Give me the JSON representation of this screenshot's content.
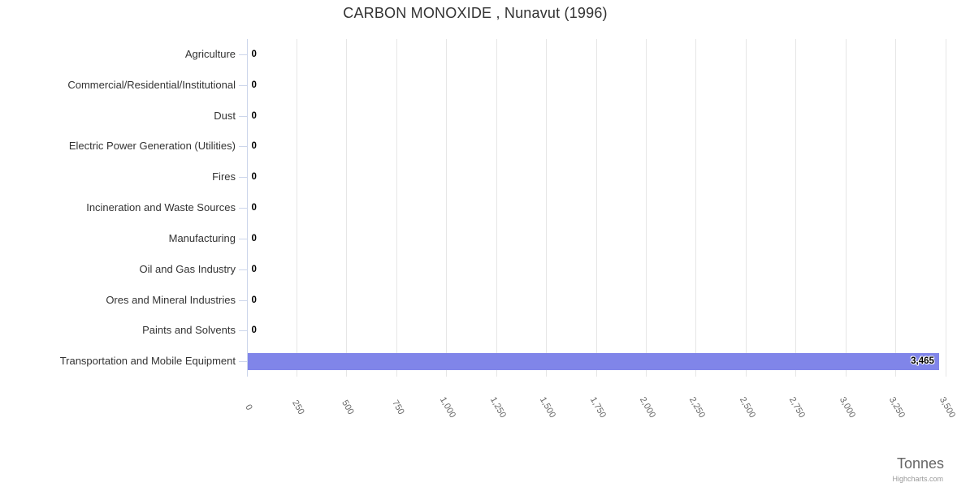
{
  "chart_data": {
    "type": "bar",
    "orientation": "horizontal",
    "title": "CARBON MONOXIDE , Nunavut (1996)",
    "xlabel": "Tonnes",
    "credit": "Highcharts.com",
    "grid": true,
    "legend": false,
    "categories": [
      "Agriculture",
      "Commercial/Residential/Institutional",
      "Dust",
      "Electric Power Generation (Utilities)",
      "Fires",
      "Incineration and Waste Sources",
      "Manufacturing",
      "Oil and Gas Industry",
      "Ores and Mineral Industries",
      "Paints and Solvents",
      "Transportation and Mobile Equipment"
    ],
    "values": [
      0,
      0,
      0,
      0,
      0,
      0,
      0,
      0,
      0,
      0,
      3465
    ],
    "value_labels": [
      "0",
      "0",
      "0",
      "0",
      "0",
      "0",
      "0",
      "0",
      "0",
      "0",
      "3,465"
    ],
    "xlim": [
      0,
      3500
    ],
    "xticks": [
      0,
      250,
      500,
      750,
      1000,
      1250,
      1500,
      1750,
      2000,
      2250,
      2500,
      2750,
      3000,
      3250,
      3500
    ],
    "xtick_labels": [
      "0",
      "250",
      "500",
      "750",
      "1,000",
      "1,250",
      "1,500",
      "1,750",
      "2,000",
      "2,250",
      "2,500",
      "2,750",
      "3,000",
      "3,250",
      "3,500"
    ],
    "colors": {
      "bar": "#8085e9",
      "grid": "#e6e6e6",
      "axis_line": "#ccd6eb",
      "title": "#333333",
      "category_label": "#333333",
      "xtick_label": "#666666",
      "data_label": "#000000",
      "axis_title": "#666666",
      "credit": "#999999"
    }
  }
}
